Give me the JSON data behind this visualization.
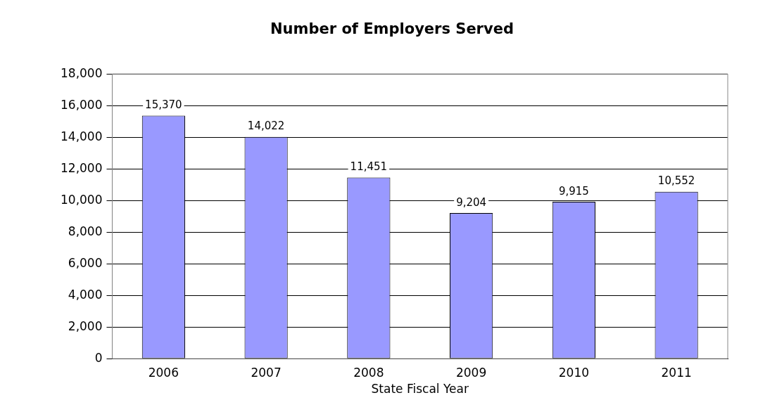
{
  "chart_data": {
    "type": "bar",
    "title": "Number of Employers Served",
    "xlabel": "State Fiscal Year",
    "categories": [
      "2006",
      "2007",
      "2008",
      "2009",
      "2010",
      "2011"
    ],
    "values": [
      15370,
      14022,
      11451,
      9204,
      9915,
      10552
    ],
    "color": "#9999ff",
    "value_labels": [
      "15,370",
      "14,022",
      "11,451",
      "9,204",
      "9,915",
      "10,552"
    ],
    "ylim": [
      0,
      18000
    ],
    "yticks": [
      0,
      {
        "value": 2000,
        "label": "2,000"
      },
      {
        "value": 4000,
        "label": "4,000"
      },
      {
        "value": 6000,
        "label": "6,000"
      },
      {
        "value": 8000,
        "label": "8,000"
      },
      {
        "value": 10000,
        "label": "10,000"
      },
      {
        "value": 12000,
        "label": "12,000"
      },
      {
        "value": 14000,
        "label": "14,000"
      },
      {
        "value": 16000,
        "label": "16,000"
      },
      {
        "value": 18000,
        "label": "18,000"
      }
    ],
    "grid": "y",
    "legend": false
  }
}
